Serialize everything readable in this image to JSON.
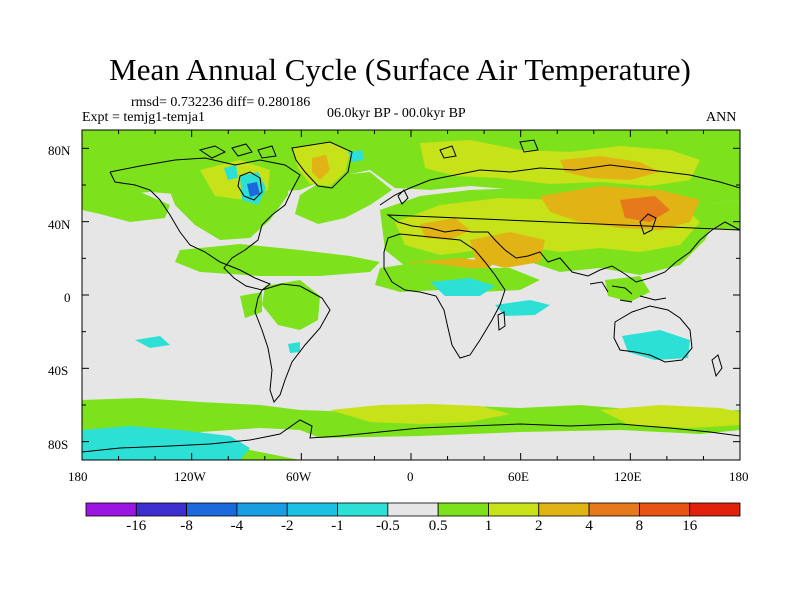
{
  "title": "Mean Annual Cycle (Surface Air Temperature)",
  "stats": "rmsd= 0.732236 diff= 0.280186",
  "experiment": "Expt = temjg1-temja1",
  "period": "06.0kyr BP - 00.0kyr BP",
  "season": "ANN",
  "map": {
    "lat_ticks": [
      "80N",
      "40N",
      "0",
      "40S",
      "80S"
    ],
    "lon_ticks": [
      "180",
      "120W",
      "60W",
      "0",
      "60E",
      "120E",
      "180"
    ]
  },
  "colorbar": {
    "labels": [
      "-16",
      "-8",
      "-4",
      "-2",
      "-1",
      "-0.5",
      "0.5",
      "1",
      "2",
      "4",
      "8",
      "16"
    ],
    "colors": [
      "#9b16e0",
      "#3d2ecf",
      "#1c69de",
      "#1a9ee3",
      "#1bc1e3",
      "#2ce0d6",
      "#e6e6e6",
      "#7de21c",
      "#c8e21a",
      "#e2b315",
      "#e6791c",
      "#e65314",
      "#e0200a"
    ]
  },
  "palette": {
    "background": "#e6e6e6",
    "green": "#7de21c",
    "yellow": "#c8e21a",
    "orange": "#e2b315",
    "darkorange": "#e6791c",
    "cyan": "#2ce0d6",
    "lightblue": "#1bc1e3",
    "blue": "#1c69de",
    "coast": "#000000"
  }
}
